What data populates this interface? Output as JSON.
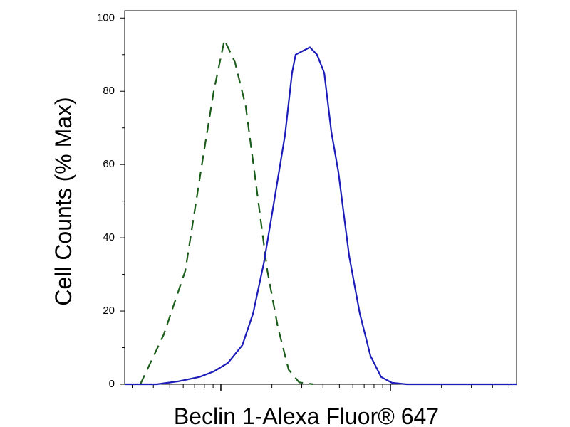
{
  "chart_data": {
    "type": "line",
    "x_label": "Beclin 1-Alexa Fluor® 647",
    "y_label": "Cell Counts (% Max)",
    "xscale": "log",
    "xlim": [
      0.271,
      55.4
    ],
    "xticks": [
      1,
      10
    ],
    "xminorticks": [
      0.3,
      0.4,
      0.5,
      0.6,
      0.7,
      0.8,
      0.9,
      2,
      3,
      4,
      5,
      6,
      7,
      8,
      9,
      20,
      30,
      40,
      50
    ],
    "ylim": [
      0,
      102
    ],
    "yticks": [
      0,
      20,
      40,
      60,
      80,
      100
    ],
    "yminorticks": [
      10,
      30,
      50,
      70,
      90
    ],
    "series": [
      {
        "color": "#1a5c1a",
        "dashed": true,
        "x": [
          0.335,
          0.461,
          0.617,
          0.785,
          0.908,
          1.05,
          1.21,
          1.4,
          1.62,
          1.88,
          2.17,
          2.51,
          2.9,
          3.52
        ],
        "values": [
          0,
          13.6,
          31,
          62,
          80,
          94,
          88,
          76,
          54,
          31,
          15.5,
          4,
          0.5,
          0
        ]
      },
      {
        "color": "#1c1cb8",
        "dashed": false,
        "x": [
          0.271,
          0.419,
          0.56,
          0.748,
          0.908,
          1.1,
          1.34,
          1.55,
          1.79,
          2.07,
          2.39,
          2.63,
          2.76,
          3.04,
          3.35,
          3.69,
          4.07,
          4.48,
          4.93,
          5.71,
          6.59,
          7.62,
          8.81,
          10.2,
          12.4,
          55.4
        ],
        "values": [
          0,
          0,
          0.8,
          2,
          3.5,
          5.8,
          10.7,
          19.4,
          33,
          50.5,
          68,
          85,
          90,
          91,
          92,
          90,
          85,
          69,
          58,
          35,
          19.4,
          7.8,
          2,
          0.4,
          0,
          0
        ]
      }
    ]
  }
}
